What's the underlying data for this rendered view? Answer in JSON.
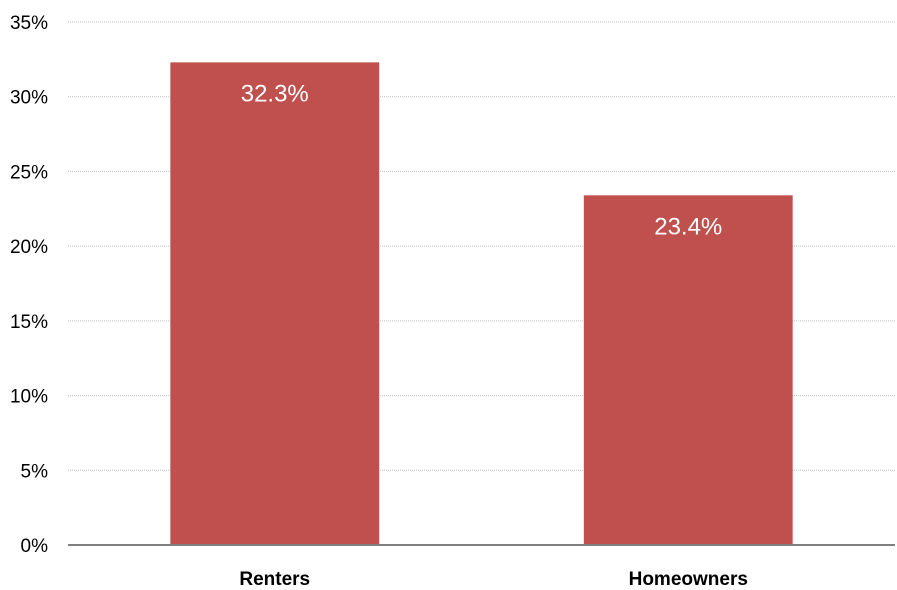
{
  "chart_data": {
    "type": "bar",
    "title": "",
    "xlabel": "",
    "ylabel": "",
    "categories": [
      "Renters",
      "Homeowners"
    ],
    "values": [
      32.3,
      23.4
    ],
    "data_labels": [
      "32.3%",
      "23.4%"
    ],
    "ylim": [
      0,
      35
    ],
    "yticks": [
      0,
      5,
      10,
      15,
      20,
      25,
      30,
      35
    ],
    "ytick_labels": [
      "0%",
      "5%",
      "10%",
      "15%",
      "20%",
      "25%",
      "30%",
      "35%"
    ],
    "grid": true,
    "legend": "none",
    "colors": {
      "bar": "#c0504d",
      "grid": "#bfbfbf",
      "axis": "#808080",
      "data_label": "#ffffff"
    }
  }
}
